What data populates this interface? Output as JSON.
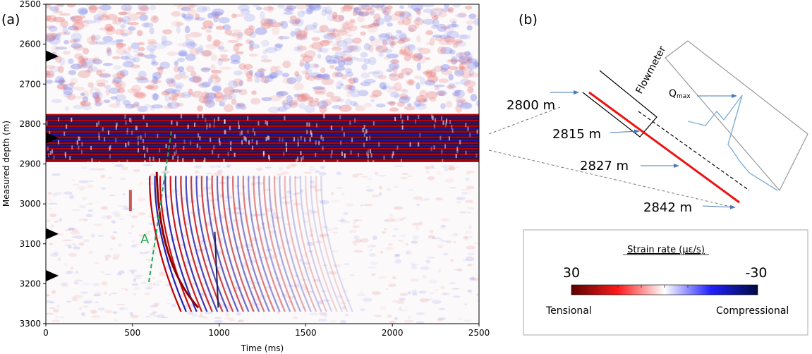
{
  "panel_a": {
    "label": "(a)",
    "ylabel": "Measured depth (m)",
    "xlabel": "Time (ms)",
    "y_ticks": [
      "2500",
      "2600",
      "2700",
      "2800",
      "2900",
      "3000",
      "3100",
      "3200",
      "3300"
    ],
    "x_ticks": [
      "0",
      "500",
      "1000",
      "1500",
      "2000",
      "2500"
    ],
    "annotation": "A",
    "markers_depth_m": [
      2630,
      2835,
      3075,
      3180
    ]
  },
  "panel_b": {
    "label": "(b)",
    "tool_label": "Flowmeter",
    "qmax_label": "Q",
    "qmax_sub": "max",
    "depth_labels": [
      "2800 m",
      "2815 m",
      "2827 m",
      "2842 m"
    ]
  },
  "colorbar": {
    "title": "Strain rate (με/s)",
    "max_label": "30",
    "min_label": "-30",
    "left_label": "Tensional",
    "right_label": "Compressional"
  },
  "colors": {
    "tension": "#cc0000",
    "compression": "#1f2ccf",
    "pipe": "#ee1111",
    "annotation": "#22aa55",
    "arrow": "#4a78b8",
    "flow_curve": "#7fb0d8"
  }
}
